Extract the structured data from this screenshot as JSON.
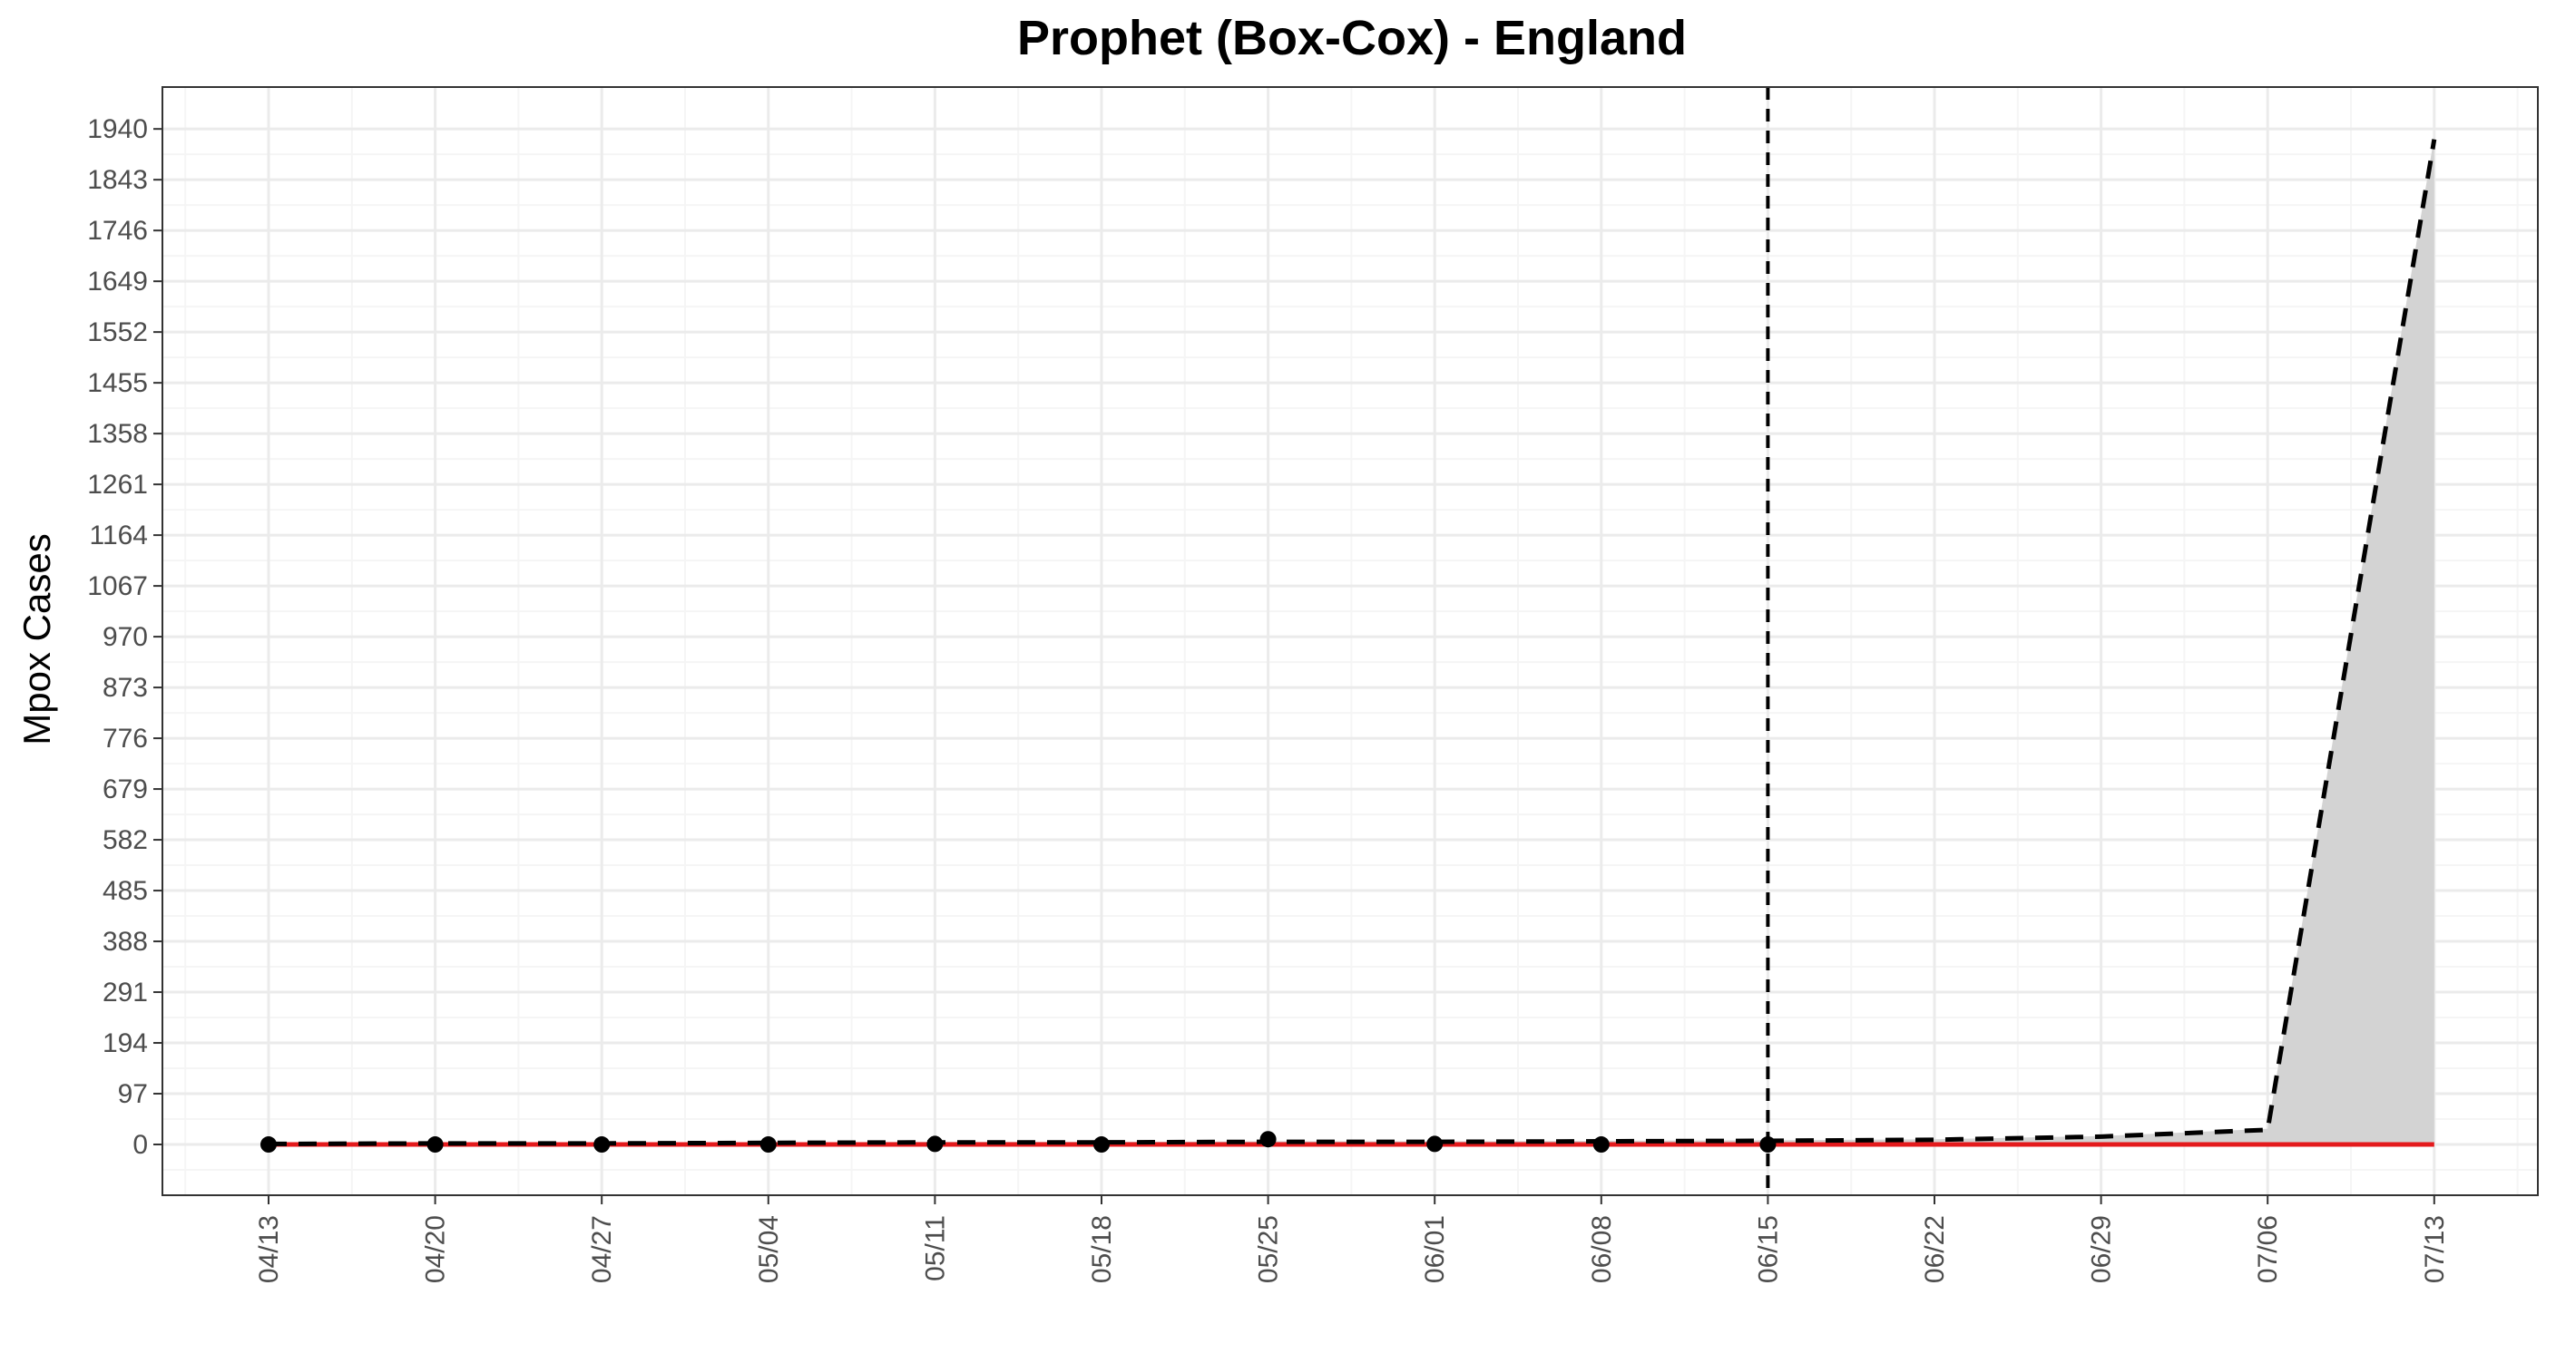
{
  "chart_data": {
    "type": "line",
    "title": "Prophet (Box-Cox) - England",
    "xlabel": "",
    "ylabel": "Mpox Cases",
    "categories": [
      "04/13",
      "04/20",
      "04/27",
      "05/04",
      "05/11",
      "05/18",
      "05/25",
      "06/01",
      "06/08",
      "06/15",
      "06/22",
      "06/29",
      "07/06",
      "07/13"
    ],
    "y_ticks": [
      0,
      97,
      194,
      291,
      388,
      485,
      582,
      679,
      776,
      873,
      970,
      1067,
      1164,
      1261,
      1358,
      1455,
      1552,
      1649,
      1746,
      1843,
      1940
    ],
    "ylim": [
      -97,
      2020
    ],
    "observed": {
      "categories": [
        "04/13",
        "04/20",
        "04/27",
        "05/04",
        "05/11",
        "05/18",
        "05/25",
        "06/01",
        "06/08",
        "06/15"
      ],
      "values": [
        0,
        0,
        0,
        0,
        1,
        0,
        10,
        1,
        0,
        0
      ]
    },
    "fitted_forecast": {
      "categories": [
        "04/13",
        "04/20",
        "04/27",
        "05/04",
        "05/11",
        "05/18",
        "05/25",
        "06/01",
        "06/08",
        "06/15",
        "06/22",
        "06/29",
        "07/06",
        "07/13"
      ],
      "values": [
        1,
        2,
        2,
        3,
        4,
        4,
        5,
        5,
        6,
        7,
        9,
        15,
        28,
        1920
      ]
    },
    "interval": {
      "lower": [
        0,
        0,
        0,
        0,
        0,
        0,
        0,
        0,
        0,
        0,
        0,
        0,
        0,
        0
      ],
      "upper": [
        2,
        2,
        3,
        4,
        5,
        5,
        6,
        6,
        7,
        8,
        10,
        16,
        30,
        1925
      ]
    },
    "actual_line": {
      "categories": [
        "04/13",
        "04/20",
        "04/27",
        "05/04",
        "05/11",
        "05/18",
        "05/25",
        "06/01",
        "06/08",
        "06/15",
        "06/22",
        "06/29",
        "07/06",
        "07/13"
      ],
      "values": [
        0,
        0,
        0,
        0,
        0,
        0,
        0,
        0,
        0,
        0,
        0,
        0,
        0,
        0
      ]
    },
    "forecast_start": "06/15",
    "grid": true,
    "colors": {
      "points": "#000000",
      "fitted_line": "#000000",
      "actual_line": "#e41a1c",
      "interval_fill": "#d3d3d3",
      "vline": "#000000",
      "grid_major": "#ebebeb",
      "grid_minor": "#f5f5f5",
      "panel_border": "#333333"
    }
  }
}
